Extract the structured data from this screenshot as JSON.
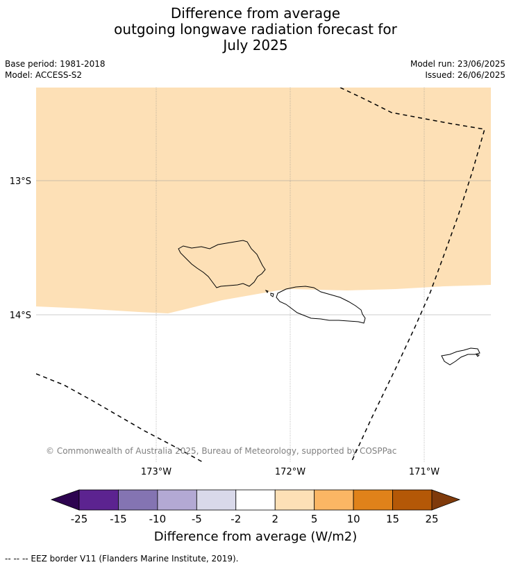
{
  "title": {
    "line1": "Difference from average",
    "line2": "outgoing longwave radiation forecast for",
    "line3": "July 2025"
  },
  "meta": {
    "base_period": "Base period: 1981-2018",
    "model": "Model: ACCESS-S2",
    "model_run": "Model run: 23/06/2025",
    "issued": "Issued: 26/06/2025"
  },
  "map": {
    "lat_labels": [
      "13°S",
      "14°S"
    ],
    "lon_labels": [
      "173°W",
      "172°W",
      "171°W"
    ],
    "copyright": "© Commonwealth of Australia 2025, Bureau of Meteorology, supported by COSPPac",
    "colors": {
      "anomaly_2_to_5": "#fde0b6",
      "land_outline": "#000000",
      "eez_border": "#000000",
      "gridline": "#808080"
    }
  },
  "colorbar": {
    "title": "Difference from average (W/m2)",
    "ticks": [
      "-25",
      "-15",
      "-10",
      "-5",
      "-2",
      "2",
      "5",
      "10",
      "15",
      "25"
    ],
    "colors": [
      "#5c2390",
      "#8474b2",
      "#b3a9d4",
      "#d9d9ea",
      "#ffffff",
      "#fde0b6",
      "#fbb664",
      "#e0821a",
      "#b45807"
    ],
    "extend_low": "#2d0450",
    "extend_high": "#7f3a0b"
  },
  "footnote": "--  --  -- EEZ border V11 (Flanders Marine Institute, 2019)."
}
